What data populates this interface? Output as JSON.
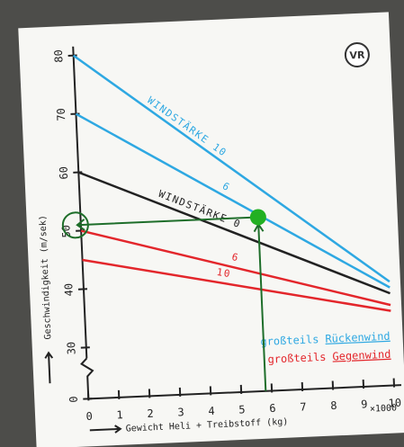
{
  "chart_data": {
    "type": "line",
    "x_label": "Gewicht Heli + Treibstoff (kg)",
    "x_unit": "×1000",
    "y_label": "Geschwindigkeit (m/sek)",
    "logo": "VR",
    "x": [
      0,
      10
    ],
    "xlim": [
      0,
      10
    ],
    "xticks": [
      0,
      1,
      2,
      3,
      4,
      5,
      6,
      7,
      8,
      9,
      10
    ],
    "ylim": [
      0,
      80
    ],
    "y_break": [
      0,
      30
    ],
    "yticks": [
      0,
      30,
      40,
      50,
      60,
      70,
      80
    ],
    "series": [
      {
        "name": "WINDSTÄRKE 10",
        "color": "#2ea8e2",
        "values": [
          80,
          39
        ]
      },
      {
        "name": "6",
        "color": "#2ea8e2",
        "values": [
          70,
          38
        ]
      },
      {
        "name": "WINDSTÄRKE 0",
        "color": "#222222",
        "values": [
          60,
          37
        ]
      },
      {
        "name": "6",
        "color": "#e3262b",
        "values": [
          50,
          35
        ]
      },
      {
        "name": "10",
        "color": "#e3262b",
        "values": [
          45,
          34
        ]
      }
    ],
    "legend": [
      {
        "text": "großteils",
        "highlight": "Rückenwind",
        "color": "#2ea8e2"
      },
      {
        "text": "großteils",
        "highlight": "Gegenwind",
        "color": "#e3262b"
      }
    ],
    "annotation": {
      "x": 5.8,
      "y": 51,
      "color": "#22b022"
    }
  }
}
